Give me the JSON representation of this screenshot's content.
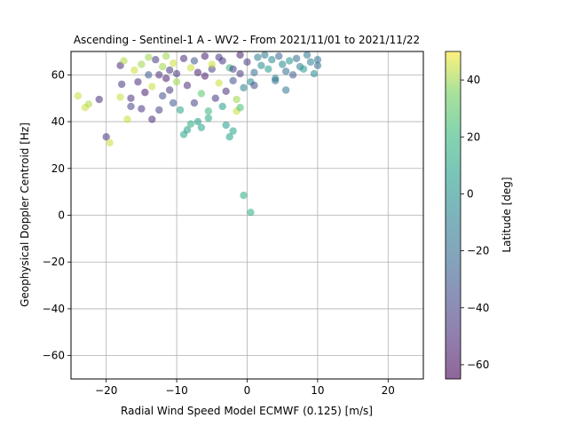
{
  "chart_data": {
    "type": "scatter",
    "title": "Ascending - Sentinel-1 A - WV2 - From 2021/11/01 to 2021/11/22",
    "xlabel": "Radial Wind Speed Model ECMWF (0.125) [m/s]",
    "ylabel": "Geophysical Doppler Centroid [Hz]",
    "xlim": [
      -25,
      25
    ],
    "ylim": [
      -70,
      70
    ],
    "xticks": [
      -20,
      -10,
      0,
      10,
      20
    ],
    "yticks": [
      -60,
      -40,
      -20,
      0,
      20,
      40,
      60
    ],
    "grid": true,
    "colormap": "viridis",
    "marker_alpha": 0.55,
    "colorbar": {
      "label": "Latitude [deg]",
      "range": [
        -65,
        50
      ],
      "ticks": [
        -60,
        -40,
        -20,
        0,
        20,
        40
      ]
    },
    "points": [
      {
        "x": -24.0,
        "y": 51.0,
        "c": 45
      },
      {
        "x": -23.0,
        "y": 46.0,
        "c": 45
      },
      {
        "x": -22.5,
        "y": 47.5,
        "c": 42
      },
      {
        "x": -21.0,
        "y": 49.5,
        "c": -50
      },
      {
        "x": -20.0,
        "y": 33.5,
        "c": -45
      },
      {
        "x": -19.5,
        "y": 31.0,
        "c": 45
      },
      {
        "x": -18.0,
        "y": 64.0,
        "c": -50
      },
      {
        "x": -17.8,
        "y": 56.0,
        "c": -45
      },
      {
        "x": -18.0,
        "y": 50.5,
        "c": 45
      },
      {
        "x": -17.5,
        "y": 66.0,
        "c": 42
      },
      {
        "x": -17.0,
        "y": 41.0,
        "c": 45
      },
      {
        "x": -16.5,
        "y": 50.0,
        "c": -48
      },
      {
        "x": -16.5,
        "y": 46.5,
        "c": -40
      },
      {
        "x": -16.0,
        "y": 62.0,
        "c": 45
      },
      {
        "x": -15.5,
        "y": 57.0,
        "c": -50
      },
      {
        "x": -15.0,
        "y": 64.5,
        "c": 40
      },
      {
        "x": -15.0,
        "y": 45.5,
        "c": -45
      },
      {
        "x": -14.5,
        "y": 52.5,
        "c": -55
      },
      {
        "x": -14.0,
        "y": 60.0,
        "c": -30
      },
      {
        "x": -13.5,
        "y": 41.0,
        "c": -50
      },
      {
        "x": -13.5,
        "y": 55.0,
        "c": 45
      },
      {
        "x": -13.0,
        "y": 66.5,
        "c": -45
      },
      {
        "x": -12.5,
        "y": 45.0,
        "c": -40
      },
      {
        "x": -12.0,
        "y": 63.5,
        "c": 40
      },
      {
        "x": -12.0,
        "y": 51.0,
        "c": -35
      },
      {
        "x": -11.5,
        "y": 58.5,
        "c": -55
      },
      {
        "x": -11.5,
        "y": 68.0,
        "c": 40
      },
      {
        "x": -11.0,
        "y": 53.5,
        "c": -45
      },
      {
        "x": -10.5,
        "y": 65.0,
        "c": 45
      },
      {
        "x": -10.5,
        "y": 48.0,
        "c": -30
      },
      {
        "x": -10.0,
        "y": 60.5,
        "c": -45
      },
      {
        "x": -9.5,
        "y": 45.0,
        "c": 10
      },
      {
        "x": -9.0,
        "y": 34.5,
        "c": 10
      },
      {
        "x": -8.5,
        "y": 36.5,
        "c": 5
      },
      {
        "x": -8.5,
        "y": 55.5,
        "c": -50
      },
      {
        "x": -8.0,
        "y": 63.0,
        "c": 45
      },
      {
        "x": -8.0,
        "y": 39.0,
        "c": 15
      },
      {
        "x": -7.5,
        "y": 48.0,
        "c": -40
      },
      {
        "x": -7.5,
        "y": 66.0,
        "c": -30
      },
      {
        "x": -7.0,
        "y": 40.0,
        "c": 5
      },
      {
        "x": -6.5,
        "y": 52.0,
        "c": 30
      },
      {
        "x": -6.5,
        "y": 37.5,
        "c": 8
      },
      {
        "x": -6.0,
        "y": 59.5,
        "c": -55
      },
      {
        "x": -5.5,
        "y": 44.5,
        "c": 20
      },
      {
        "x": -5.5,
        "y": 41.5,
        "c": 12
      },
      {
        "x": -5.0,
        "y": 62.5,
        "c": -40
      },
      {
        "x": -4.5,
        "y": 50.0,
        "c": -45
      },
      {
        "x": -4.0,
        "y": 56.5,
        "c": 45
      },
      {
        "x": -4.0,
        "y": 67.5,
        "c": -45
      },
      {
        "x": -3.5,
        "y": 46.5,
        "c": 5
      },
      {
        "x": -3.0,
        "y": 53.0,
        "c": -50
      },
      {
        "x": -3.0,
        "y": 38.5,
        "c": 5
      },
      {
        "x": -2.5,
        "y": 63.0,
        "c": 20
      },
      {
        "x": -2.5,
        "y": 33.5,
        "c": 8
      },
      {
        "x": -2.0,
        "y": 36.0,
        "c": 10
      },
      {
        "x": -2.0,
        "y": 57.5,
        "c": -35
      },
      {
        "x": -1.5,
        "y": 49.5,
        "c": 40
      },
      {
        "x": -1.5,
        "y": 44.5,
        "c": 45
      },
      {
        "x": -1.0,
        "y": 46.0,
        "c": 25
      },
      {
        "x": -1.0,
        "y": 60.5,
        "c": -45
      },
      {
        "x": -0.5,
        "y": 54.5,
        "c": -10
      },
      {
        "x": -0.5,
        "y": 8.5,
        "c": 15
      },
      {
        "x": 0.5,
        "y": 1.2,
        "c": 15
      },
      {
        "x": 0.0,
        "y": 65.5,
        "c": -45
      },
      {
        "x": 0.5,
        "y": 57.0,
        "c": -5
      },
      {
        "x": 1.0,
        "y": 61.0,
        "c": -20
      },
      {
        "x": 1.0,
        "y": 55.5,
        "c": -35
      },
      {
        "x": 1.5,
        "y": 67.5,
        "c": -10
      },
      {
        "x": 2.0,
        "y": 64.0,
        "c": -5
      },
      {
        "x": 2.5,
        "y": 68.5,
        "c": -15
      },
      {
        "x": 3.0,
        "y": 62.5,
        "c": 5
      },
      {
        "x": 3.5,
        "y": 66.5,
        "c": -5
      },
      {
        "x": 4.0,
        "y": 58.5,
        "c": -10
      },
      {
        "x": 4.0,
        "y": 57.5,
        "c": -15
      },
      {
        "x": 4.5,
        "y": 68.0,
        "c": -25
      },
      {
        "x": 5.0,
        "y": 64.5,
        "c": -5
      },
      {
        "x": 5.5,
        "y": 53.5,
        "c": -15
      },
      {
        "x": 5.5,
        "y": 61.5,
        "c": -20
      },
      {
        "x": 6.0,
        "y": 66.0,
        "c": 0
      },
      {
        "x": 6.5,
        "y": 60.0,
        "c": -30
      },
      {
        "x": 7.0,
        "y": 67.0,
        "c": -20
      },
      {
        "x": 7.5,
        "y": 63.5,
        "c": -10
      },
      {
        "x": 8.0,
        "y": 62.5,
        "c": 5
      },
      {
        "x": 8.5,
        "y": 68.5,
        "c": -15
      },
      {
        "x": 9.0,
        "y": 65.5,
        "c": -10
      },
      {
        "x": 9.5,
        "y": 60.5,
        "c": -5
      },
      {
        "x": 10.0,
        "y": 64.0,
        "c": -20
      },
      {
        "x": 10.0,
        "y": 66.5,
        "c": -15
      },
      {
        "x": -6.0,
        "y": 68.0,
        "c": -55
      },
      {
        "x": -9.0,
        "y": 67.0,
        "c": -50
      },
      {
        "x": -3.5,
        "y": 66.0,
        "c": -45
      },
      {
        "x": -1.0,
        "y": 68.5,
        "c": -55
      },
      {
        "x": -12.5,
        "y": 60.0,
        "c": -50
      },
      {
        "x": -14.0,
        "y": 67.5,
        "c": 40
      },
      {
        "x": -5.0,
        "y": 64.5,
        "c": 45
      },
      {
        "x": -7.0,
        "y": 61.0,
        "c": -55
      },
      {
        "x": -2.0,
        "y": 62.5,
        "c": -40
      },
      {
        "x": -10.0,
        "y": 57.0,
        "c": 40
      },
      {
        "x": -11.0,
        "y": 62.0,
        "c": -45
      }
    ]
  }
}
